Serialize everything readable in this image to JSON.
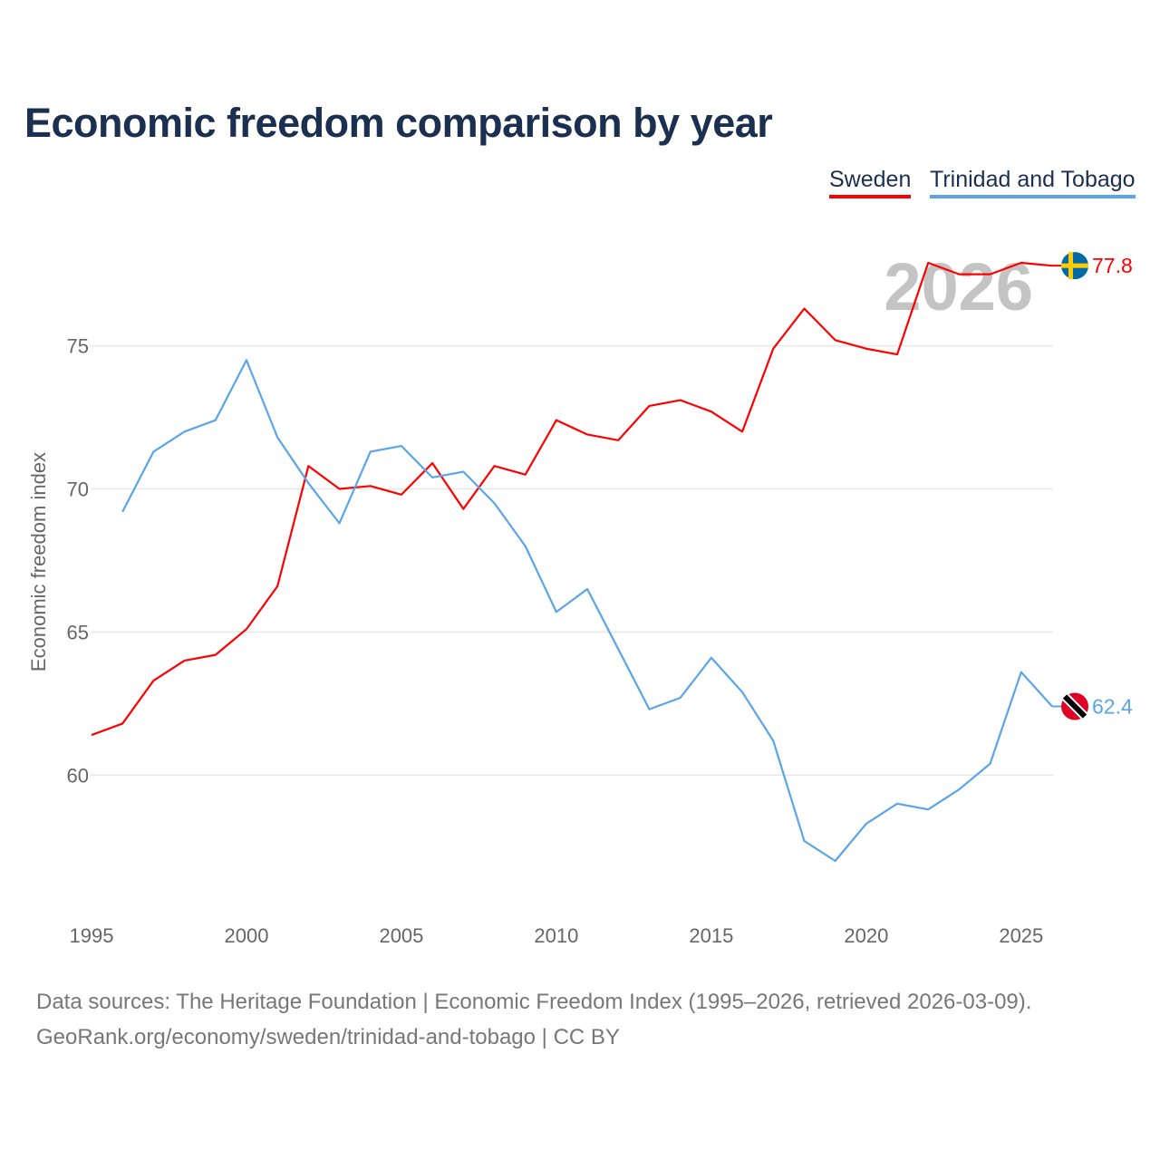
{
  "chart_data": {
    "type": "line",
    "title": "Economic freedom comparison by year",
    "xlabel": "",
    "ylabel": "Economic freedom index",
    "xlim": [
      1995,
      2026
    ],
    "ylim": [
      55.1,
      79.8
    ],
    "xticks": [
      1995,
      2000,
      2005,
      2010,
      2015,
      2020,
      2025
    ],
    "yticks": [
      60,
      65,
      70,
      75
    ],
    "grid": true,
    "legend_placement": "top-right",
    "watermark_year": "2026",
    "series": [
      {
        "name": "Sweden",
        "color": "#ff0000",
        "end_label": "77.8",
        "x": [
          1995,
          1996,
          1997,
          1998,
          1999,
          2000,
          2001,
          2002,
          2003,
          2004,
          2005,
          2006,
          2007,
          2008,
          2009,
          2010,
          2011,
          2012,
          2013,
          2014,
          2015,
          2016,
          2017,
          2018,
          2019,
          2020,
          2021,
          2022,
          2023,
          2024,
          2025,
          2026
        ],
        "values": [
          61.4,
          61.8,
          63.3,
          64.0,
          64.2,
          65.1,
          66.6,
          70.8,
          70.0,
          70.1,
          69.8,
          70.9,
          69.3,
          70.8,
          70.5,
          72.4,
          71.9,
          71.7,
          72.9,
          73.1,
          72.7,
          72.0,
          74.9,
          76.3,
          75.2,
          74.9,
          74.7,
          77.9,
          77.5,
          77.5,
          77.9,
          77.8
        ]
      },
      {
        "name": "Trinidad and Tobago",
        "color": "#5aa5ea",
        "end_label": "62.4",
        "x": [
          1996,
          1997,
          1998,
          1999,
          2000,
          2001,
          2002,
          2003,
          2004,
          2005,
          2006,
          2007,
          2008,
          2009,
          2010,
          2011,
          2012,
          2013,
          2014,
          2015,
          2016,
          2017,
          2018,
          2019,
          2020,
          2021,
          2022,
          2023,
          2024,
          2025,
          2026
        ],
        "values": [
          69.2,
          71.3,
          72.0,
          72.4,
          74.5,
          71.8,
          70.2,
          68.8,
          71.3,
          71.5,
          70.4,
          70.6,
          69.5,
          68.0,
          65.7,
          66.5,
          64.4,
          62.3,
          62.7,
          64.1,
          62.9,
          61.2,
          57.7,
          57.0,
          58.3,
          59.0,
          58.8,
          59.5,
          60.4,
          63.6,
          62.4
        ]
      }
    ]
  },
  "footer": {
    "line1": "Data sources: The Heritage Foundation | Economic Freedom Index (1995–2026, retrieved 2026-03-09).",
    "line2": "GeoRank.org/economy/sweden/trinidad-and-tobago | CC BY"
  }
}
